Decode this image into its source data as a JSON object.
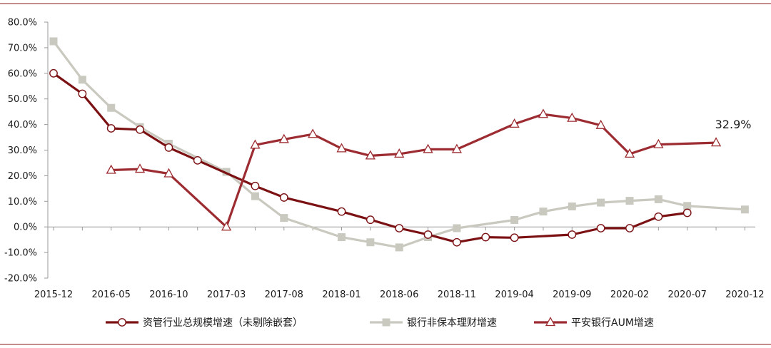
{
  "chart_data": {
    "type": "line",
    "title": "",
    "xlabel": "",
    "ylabel": "",
    "ylim": [
      -20,
      80
    ],
    "yticks": [
      -20,
      -10,
      0,
      10,
      20,
      30,
      40,
      50,
      60,
      70,
      80
    ],
    "ytick_labels": [
      "-20.0%",
      "-10.0%",
      "0.0%",
      "10.0%",
      "20.0%",
      "30.0%",
      "40.0%",
      "50.0%",
      "60.0%",
      "70.0%",
      "80.0%"
    ],
    "x": [
      "2015-12",
      "2016-03",
      "2016-05",
      "2016-08",
      "2016-10",
      "2017-01",
      "2017-03",
      "2017-05",
      "2017-08",
      "2017-10",
      "2018-01",
      "2018-03",
      "2018-06",
      "2018-08",
      "2018-11",
      "2019-01",
      "2019-04",
      "2019-06",
      "2019-09",
      "2019-11",
      "2020-02",
      "2020-04",
      "2020-07",
      "2020-09",
      "2020-12"
    ],
    "xtick_labels": [
      "2015-12",
      "2016-05",
      "2016-10",
      "2017-03",
      "2017-08",
      "2018-01",
      "2018-06",
      "2018-11",
      "2019-04",
      "2019-09",
      "2020-02",
      "2020-07",
      "2020-12"
    ],
    "grid": false,
    "legend_position": "bottom",
    "series": [
      {
        "name": "资管行业总规模增速（未剔除嵌套）",
        "color": "#7b1113",
        "marker": "circle",
        "values": [
          60.0,
          52.0,
          38.5,
          38.0,
          31.0,
          26.0,
          null,
          16.0,
          11.5,
          null,
          6.0,
          2.8,
          -0.5,
          -3.0,
          -6.0,
          -4.0,
          -4.2,
          null,
          -3.0,
          -0.5,
          -0.5,
          4.0,
          5.5,
          null,
          null
        ]
      },
      {
        "name": "银行非保本理财增速",
        "color": "#c9c9c0",
        "marker": "square",
        "values": [
          72.5,
          57.5,
          46.5,
          39.0,
          32.5,
          null,
          21.5,
          12.0,
          3.5,
          null,
          -4.0,
          -6.0,
          -8.0,
          -4.0,
          -0.5,
          null,
          2.7,
          6.0,
          8.0,
          9.5,
          10.2,
          10.8,
          8.2,
          null,
          6.8
        ]
      },
      {
        "name": "平安银行AUM增速",
        "color": "#9c2c31",
        "marker": "triangle",
        "values": [
          null,
          null,
          22.2,
          22.6,
          20.8,
          null,
          0.0,
          32.0,
          34.2,
          36.2,
          30.6,
          27.8,
          28.5,
          30.3,
          30.3,
          null,
          40.2,
          44.0,
          42.5,
          39.7,
          28.5,
          32.2,
          null,
          32.9,
          null
        ]
      }
    ],
    "annotations": [
      {
        "text": "32.9%",
        "series": 2,
        "index": 23
      }
    ]
  }
}
